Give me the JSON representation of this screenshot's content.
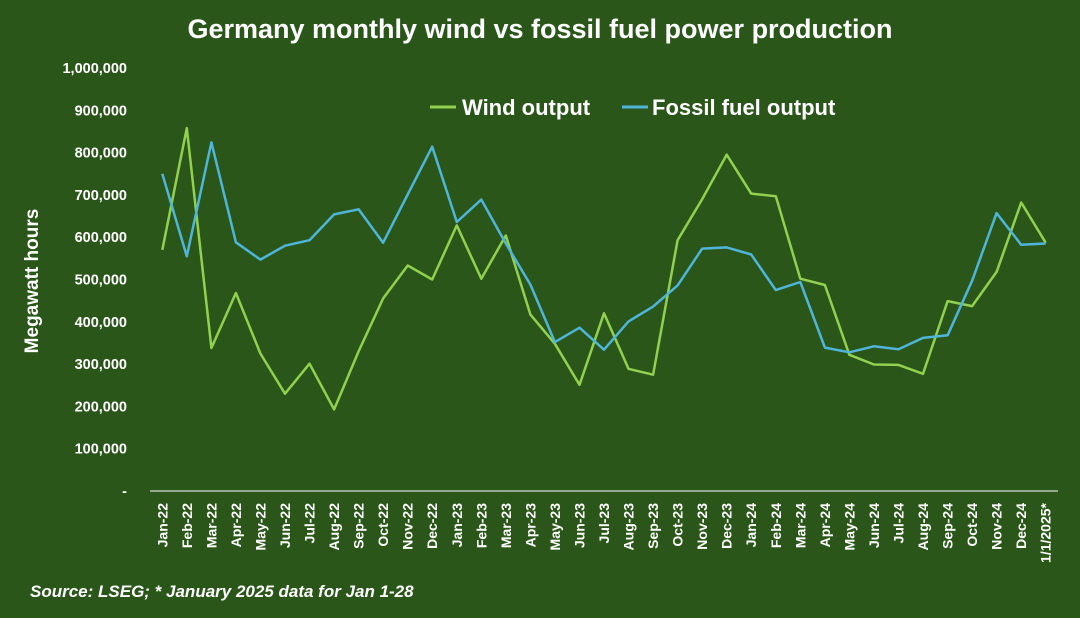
{
  "chart_data": {
    "type": "line",
    "title": "Germany monthly wind vs fossil fuel power production",
    "ylabel": "Megawatt hours",
    "xlabel": "",
    "ylim": [
      0,
      1000000
    ],
    "y_ticks": [
      {
        "value": 0,
        "label": "-"
      },
      {
        "value": 100000,
        "label": "100,000"
      },
      {
        "value": 200000,
        "label": "200,000"
      },
      {
        "value": 300000,
        "label": "300,000"
      },
      {
        "value": 400000,
        "label": "400,000"
      },
      {
        "value": 500000,
        "label": "500,000"
      },
      {
        "value": 600000,
        "label": "600,000"
      },
      {
        "value": 700000,
        "label": "700,000"
      },
      {
        "value": 800000,
        "label": "800,000"
      },
      {
        "value": 900000,
        "label": "900,000"
      },
      {
        "value": 1000000,
        "label": "1,000,000"
      }
    ],
    "grid": false,
    "legend_position": "top-center",
    "categories": [
      "Jan-22",
      "Feb-22",
      "Mar-22",
      "Apr-22",
      "May-22",
      "Jun-22",
      "Jul-22",
      "Aug-22",
      "Sep-22",
      "Oct-22",
      "Nov-22",
      "Dec-22",
      "Jan-23",
      "Feb-23",
      "Mar-23",
      "Apr-23",
      "May-23",
      "Jun-23",
      "Jul-23",
      "Aug-23",
      "Sep-23",
      "Oct-23",
      "Nov-23",
      "Dec-23",
      "Jan-24",
      "Feb-24",
      "Mar-24",
      "Apr-24",
      "May-24",
      "Jun-24",
      "Jul-24",
      "Aug-24",
      "Sep-24",
      "Oct-24",
      "Nov-24",
      "Dec-24",
      "1/1/2025*"
    ],
    "series": [
      {
        "name": "Wind output",
        "color": "#92d050",
        "values": [
          570000,
          858000,
          338000,
          468000,
          325000,
          230000,
          301000,
          193000,
          330000,
          455000,
          533000,
          500000,
          628000,
          502000,
          604000,
          417000,
          348000,
          251000,
          420000,
          289000,
          275000,
          593000,
          690000,
          795000,
          703000,
          697000,
          502000,
          487000,
          322000,
          299000,
          298000,
          277000,
          449000,
          437000,
          518000,
          682000,
          587000
        ]
      },
      {
        "name": "Fossil fuel output",
        "color": "#4fb5d9",
        "values": [
          750000,
          555000,
          824000,
          588000,
          547000,
          580000,
          593000,
          654000,
          666000,
          587000,
          701000,
          814000,
          636000,
          689000,
          585000,
          488000,
          352000,
          386000,
          334000,
          401000,
          436000,
          486000,
          573000,
          576000,
          559000,
          475000,
          494000,
          339000,
          328000,
          342000,
          335000,
          362000,
          368000,
          497000,
          657000,
          582000,
          585000
        ]
      }
    ],
    "source_note": "Source: LSEG; * January 2025 data for Jan 1-28"
  }
}
